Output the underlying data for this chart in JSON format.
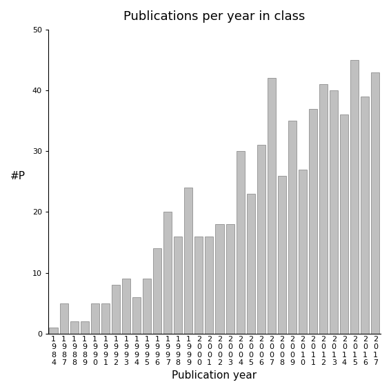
{
  "title": "Publications per year in class",
  "xlabel": "Publication year",
  "ylabel": "#P",
  "ylim": [
    0,
    50
  ],
  "yticks": [
    0,
    10,
    20,
    30,
    40,
    50
  ],
  "categories": [
    "1984",
    "1987",
    "1988",
    "1989",
    "1990",
    "1991",
    "1992",
    "1993",
    "1994",
    "1995",
    "1996",
    "1997",
    "1998",
    "1999",
    "2000",
    "2001",
    "2002",
    "2003",
    "2004",
    "2005",
    "2006",
    "2007",
    "2008",
    "2009",
    "2010",
    "2011",
    "2012",
    "2013",
    "2014",
    "2015",
    "2016",
    "2017"
  ],
  "values": [
    1,
    5,
    2,
    2,
    5,
    5,
    8,
    9,
    6,
    9,
    14,
    20,
    16,
    24,
    16,
    16,
    18,
    18,
    30,
    23,
    31,
    42,
    26,
    35,
    27,
    37,
    41,
    40,
    36,
    45,
    39,
    43
  ],
  "bar_color": "#c0c0c0",
  "bar_edgecolor": "#808080",
  "background_color": "#ffffff",
  "title_fontsize": 13,
  "axis_fontsize": 11,
  "tick_fontsize": 8
}
